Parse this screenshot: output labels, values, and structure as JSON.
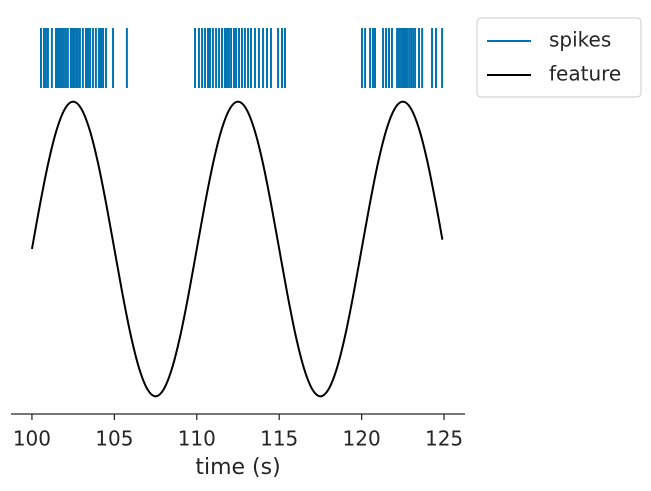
{
  "chart_data": {
    "type": "eventplot",
    "xlabel": "time (s)",
    "xlim": [
      98.73,
      126.27
    ],
    "xticks": [
      100,
      105,
      110,
      115,
      120,
      125
    ],
    "ylim": [
      -1.12,
      1.5
    ],
    "legend": "upper right outside",
    "series": [
      {
        "name": "spikes",
        "color": "#0173b2",
        "x": [
          100.55,
          100.73,
          100.85,
          100.97,
          101.21,
          101.46,
          101.58,
          101.7,
          101.82,
          101.94,
          102.06,
          102.18,
          102.37,
          102.49,
          102.55,
          102.67,
          102.79,
          102.91,
          103.09,
          103.28,
          103.4,
          103.52,
          103.7,
          103.88,
          104.07,
          104.19,
          104.31,
          104.49,
          104.92,
          105.76,
          109.89,
          110.13,
          110.32,
          110.5,
          110.68,
          110.8,
          110.98,
          111.17,
          111.35,
          111.53,
          111.71,
          111.83,
          111.95,
          112.08,
          112.26,
          112.38,
          112.56,
          112.74,
          112.92,
          113.11,
          113.29,
          113.53,
          113.77,
          114.02,
          114.26,
          114.5,
          114.93,
          115.17,
          115.35,
          120.02,
          120.21,
          120.51,
          120.69,
          120.81,
          121.3,
          121.48,
          121.66,
          121.84,
          122.15,
          122.27,
          122.39,
          122.51,
          122.63,
          122.75,
          122.88,
          123.0,
          123.12,
          123.24,
          123.48,
          123.67,
          124.27,
          124.51,
          124.88
        ]
      },
      {
        "name": "feature",
        "color": "#000000",
        "x": [
          100,
          100.5,
          101,
          101.5,
          102,
          102.5,
          103,
          103.5,
          104,
          104.5,
          105,
          105.5,
          106,
          106.5,
          107,
          107.5,
          108,
          108.5,
          109,
          109.5,
          110,
          110.5,
          111,
          111.5,
          112,
          112.5,
          113,
          113.5,
          114,
          114.5,
          115,
          115.5,
          116,
          116.5,
          117,
          117.5,
          118,
          118.5,
          119,
          119.5,
          120,
          120.5,
          121,
          121.5,
          122,
          122.5,
          123,
          123.5,
          124,
          124.5,
          124.9
        ],
        "values": [
          0,
          0.309,
          0.588,
          0.809,
          0.951,
          1,
          0.951,
          0.809,
          0.588,
          0.309,
          0,
          -0.309,
          -0.588,
          -0.809,
          -0.951,
          -1,
          -0.951,
          -0.809,
          -0.588,
          -0.309,
          0,
          0.309,
          0.588,
          0.809,
          0.951,
          1,
          0.951,
          0.809,
          0.588,
          0.309,
          0,
          -0.309,
          -0.588,
          -0.809,
          -0.951,
          -1,
          -0.951,
          -0.809,
          -0.588,
          -0.309,
          0,
          0.309,
          0.588,
          0.809,
          0.951,
          1,
          0.951,
          0.809,
          0.588,
          0.309,
          0.063
        ]
      }
    ]
  }
}
